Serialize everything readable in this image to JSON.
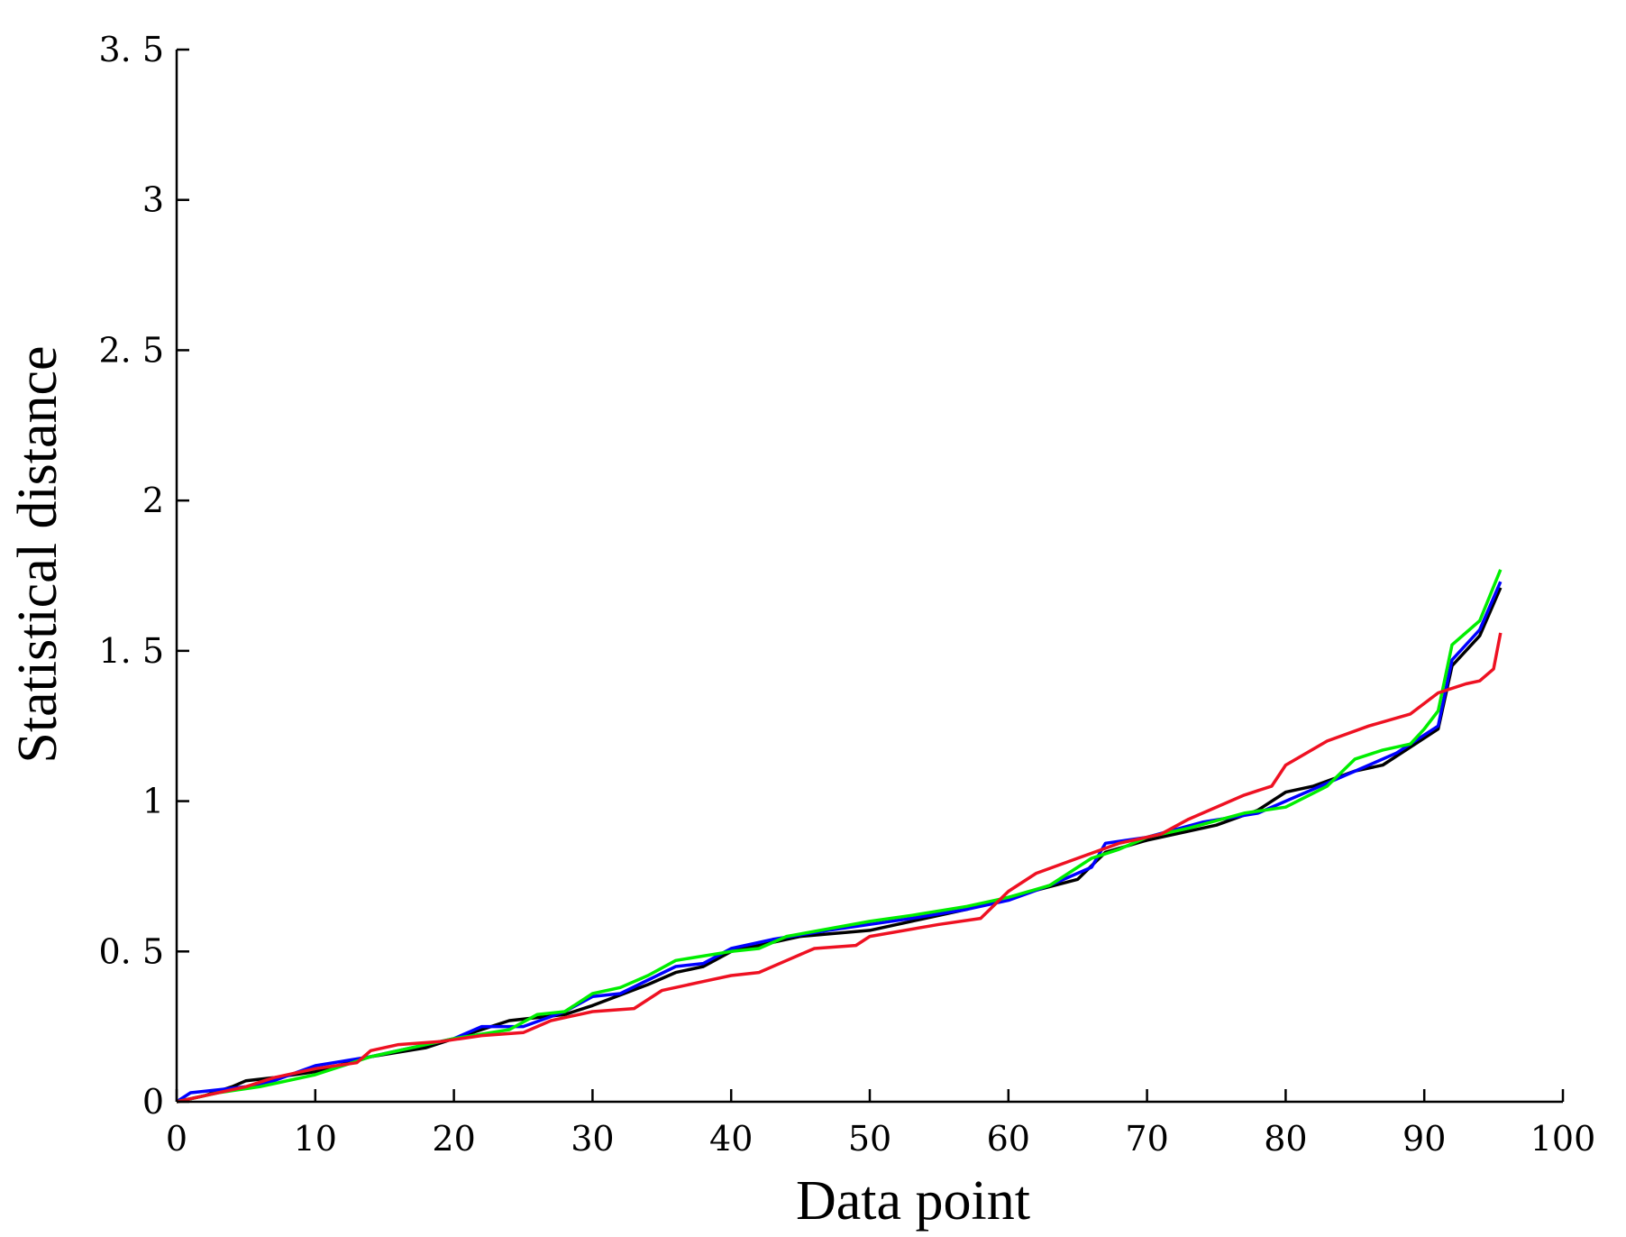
{
  "chart_data": {
    "type": "line",
    "title": "",
    "xlabel": "Data point",
    "ylabel": "Statistical distance",
    "xlim": [
      0,
      100
    ],
    "ylim": [
      0,
      3.5
    ],
    "x_ticks": [
      0,
      10,
      20,
      30,
      40,
      50,
      60,
      70,
      80,
      90,
      100
    ],
    "x_tick_labels": [
      "0",
      "10",
      "20",
      "30",
      "40",
      "50",
      "60",
      "70",
      "80",
      "90",
      "100"
    ],
    "y_ticks": [
      0,
      0.5,
      1,
      1.5,
      2,
      2.5,
      3,
      3.5
    ],
    "y_tick_labels": [
      "0",
      "0. 5",
      "1",
      "1. 5",
      "2",
      "2. 5",
      "3",
      "3. 5"
    ],
    "grid": false,
    "legend": "none",
    "series": [
      {
        "color": "#000000",
        "points": [
          [
            0,
            0
          ],
          [
            2,
            0.02
          ],
          [
            4,
            0.05
          ],
          [
            5,
            0.07
          ],
          [
            7,
            0.08
          ],
          [
            10,
            0.1
          ],
          [
            14,
            0.15
          ],
          [
            18,
            0.18
          ],
          [
            20,
            0.21
          ],
          [
            24,
            0.27
          ],
          [
            28,
            0.29
          ],
          [
            30,
            0.32
          ],
          [
            34,
            0.39
          ],
          [
            36,
            0.43
          ],
          [
            38,
            0.45
          ],
          [
            40,
            0.5
          ],
          [
            45,
            0.55
          ],
          [
            50,
            0.57
          ],
          [
            53,
            0.6
          ],
          [
            57,
            0.64
          ],
          [
            60,
            0.68
          ],
          [
            65,
            0.74
          ],
          [
            67,
            0.83
          ],
          [
            70,
            0.87
          ],
          [
            75,
            0.92
          ],
          [
            78,
            0.97
          ],
          [
            80,
            1.03
          ],
          [
            82,
            1.05
          ],
          [
            85,
            1.1
          ],
          [
            87,
            1.12
          ],
          [
            89,
            1.18
          ],
          [
            91,
            1.24
          ],
          [
            92,
            1.45
          ],
          [
            94,
            1.55
          ],
          [
            95.5,
            1.71
          ]
        ]
      },
      {
        "color": "#0000ff",
        "points": [
          [
            0,
            0
          ],
          [
            1,
            0.03
          ],
          [
            3,
            0.04
          ],
          [
            5,
            0.05
          ],
          [
            7,
            0.07
          ],
          [
            10,
            0.12
          ],
          [
            14,
            0.15
          ],
          [
            18,
            0.19
          ],
          [
            20,
            0.21
          ],
          [
            22,
            0.25
          ],
          [
            25,
            0.25
          ],
          [
            28,
            0.3
          ],
          [
            30,
            0.35
          ],
          [
            32,
            0.36
          ],
          [
            36,
            0.45
          ],
          [
            38,
            0.46
          ],
          [
            40,
            0.51
          ],
          [
            43,
            0.54
          ],
          [
            47,
            0.57
          ],
          [
            50,
            0.59
          ],
          [
            53,
            0.61
          ],
          [
            57,
            0.64
          ],
          [
            60,
            0.67
          ],
          [
            63,
            0.72
          ],
          [
            66,
            0.78
          ],
          [
            67,
            0.86
          ],
          [
            70,
            0.88
          ],
          [
            74,
            0.93
          ],
          [
            78,
            0.96
          ],
          [
            80,
            1.0
          ],
          [
            83,
            1.06
          ],
          [
            86,
            1.12
          ],
          [
            88,
            1.16
          ],
          [
            90,
            1.22
          ],
          [
            91,
            1.25
          ],
          [
            92,
            1.47
          ],
          [
            94,
            1.57
          ],
          [
            95.5,
            1.73
          ]
        ]
      },
      {
        "color": "#00ee00",
        "points": [
          [
            0,
            0
          ],
          [
            3,
            0.03
          ],
          [
            6,
            0.05
          ],
          [
            10,
            0.09
          ],
          [
            14,
            0.15
          ],
          [
            18,
            0.19
          ],
          [
            20,
            0.21
          ],
          [
            24,
            0.24
          ],
          [
            26,
            0.29
          ],
          [
            28,
            0.3
          ],
          [
            30,
            0.36
          ],
          [
            32,
            0.38
          ],
          [
            34,
            0.42
          ],
          [
            36,
            0.47
          ],
          [
            40,
            0.5
          ],
          [
            42,
            0.51
          ],
          [
            44,
            0.55
          ],
          [
            50,
            0.6
          ],
          [
            53,
            0.62
          ],
          [
            57,
            0.65
          ],
          [
            60,
            0.68
          ],
          [
            63,
            0.72
          ],
          [
            66,
            0.81
          ],
          [
            68,
            0.84
          ],
          [
            70,
            0.88
          ],
          [
            73,
            0.91
          ],
          [
            77,
            0.96
          ],
          [
            80,
            0.98
          ],
          [
            83,
            1.05
          ],
          [
            85,
            1.14
          ],
          [
            87,
            1.17
          ],
          [
            89,
            1.19
          ],
          [
            90,
            1.24
          ],
          [
            91,
            1.3
          ],
          [
            92,
            1.52
          ],
          [
            94,
            1.6
          ],
          [
            95.5,
            1.77
          ]
        ]
      },
      {
        "color": "#ee1122",
        "points": [
          [
            0,
            0
          ],
          [
            2,
            0.02
          ],
          [
            5,
            0.05
          ],
          [
            7,
            0.08
          ],
          [
            10,
            0.11
          ],
          [
            13,
            0.13
          ],
          [
            14,
            0.17
          ],
          [
            16,
            0.19
          ],
          [
            19,
            0.2
          ],
          [
            22,
            0.22
          ],
          [
            25,
            0.23
          ],
          [
            27,
            0.27
          ],
          [
            30,
            0.3
          ],
          [
            33,
            0.31
          ],
          [
            35,
            0.37
          ],
          [
            38,
            0.4
          ],
          [
            40,
            0.42
          ],
          [
            42,
            0.43
          ],
          [
            44,
            0.47
          ],
          [
            46,
            0.51
          ],
          [
            49,
            0.52
          ],
          [
            50,
            0.55
          ],
          [
            55,
            0.59
          ],
          [
            58,
            0.61
          ],
          [
            60,
            0.7
          ],
          [
            62,
            0.76
          ],
          [
            65,
            0.81
          ],
          [
            68,
            0.86
          ],
          [
            71,
            0.89
          ],
          [
            73,
            0.94
          ],
          [
            77,
            1.02
          ],
          [
            79,
            1.05
          ],
          [
            80,
            1.12
          ],
          [
            83,
            1.2
          ],
          [
            86,
            1.25
          ],
          [
            89,
            1.29
          ],
          [
            91,
            1.36
          ],
          [
            93,
            1.39
          ],
          [
            94,
            1.4
          ],
          [
            95,
            1.44
          ],
          [
            95.5,
            1.56
          ]
        ]
      }
    ]
  }
}
